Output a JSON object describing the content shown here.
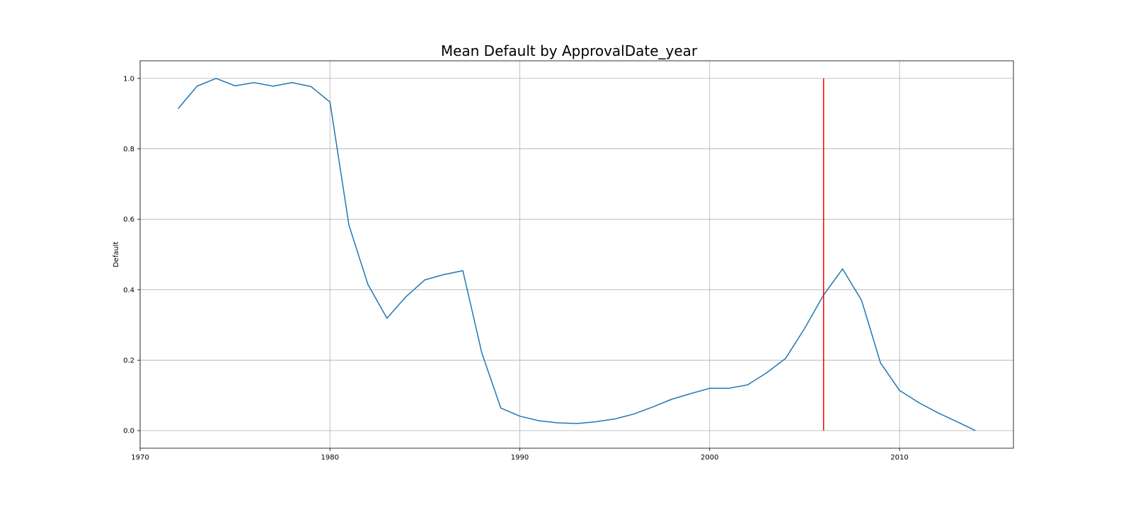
{
  "chart_data": {
    "type": "line",
    "title": "Mean Default by ApprovalDate_year",
    "xlabel": "",
    "ylabel": "Default",
    "xlim": [
      1970,
      2016
    ],
    "ylim": [
      -0.05,
      1.05
    ],
    "xticks": [
      1970,
      1980,
      1990,
      2000,
      2010
    ],
    "xtick_labels": [
      "1970",
      "1980",
      "1990",
      "2000",
      "2010"
    ],
    "yticks": [
      0.0,
      0.2,
      0.4,
      0.6,
      0.8,
      1.0
    ],
    "ytick_labels": [
      "0.0",
      "0.2",
      "0.4",
      "0.6",
      "0.8",
      "1.0"
    ],
    "grid": true,
    "series": [
      {
        "color": "#1f77b4",
        "x": [
          1972,
          1973,
          1974,
          1975,
          1976,
          1977,
          1978,
          1979,
          1980,
          1981,
          1982,
          1983,
          1984,
          1985,
          1986,
          1987,
          1988,
          1989,
          1990,
          1991,
          1992,
          1993,
          1994,
          1995,
          1996,
          1997,
          1998,
          1999,
          2000,
          2001,
          2002,
          2003,
          2004,
          2005,
          2006,
          2007,
          2008,
          2009,
          2010,
          2011,
          2012,
          2013,
          2014
        ],
        "values": [
          0.914,
          0.978,
          1.0,
          0.979,
          0.988,
          0.978,
          0.988,
          0.977,
          0.933,
          0.583,
          0.415,
          0.319,
          0.38,
          0.428,
          0.443,
          0.454,
          0.22,
          0.064,
          0.041,
          0.028,
          0.022,
          0.02,
          0.025,
          0.033,
          0.047,
          0.067,
          0.089,
          0.105,
          0.12,
          0.12,
          0.13,
          0.164,
          0.205,
          0.29,
          0.385,
          0.459,
          0.37,
          0.192,
          0.114,
          0.08,
          0.051,
          0.026,
          0.0
        ]
      }
    ],
    "vline": {
      "x": 2006,
      "ymin": 0.0,
      "ymax": 1.0,
      "color": "#ff0000"
    }
  }
}
